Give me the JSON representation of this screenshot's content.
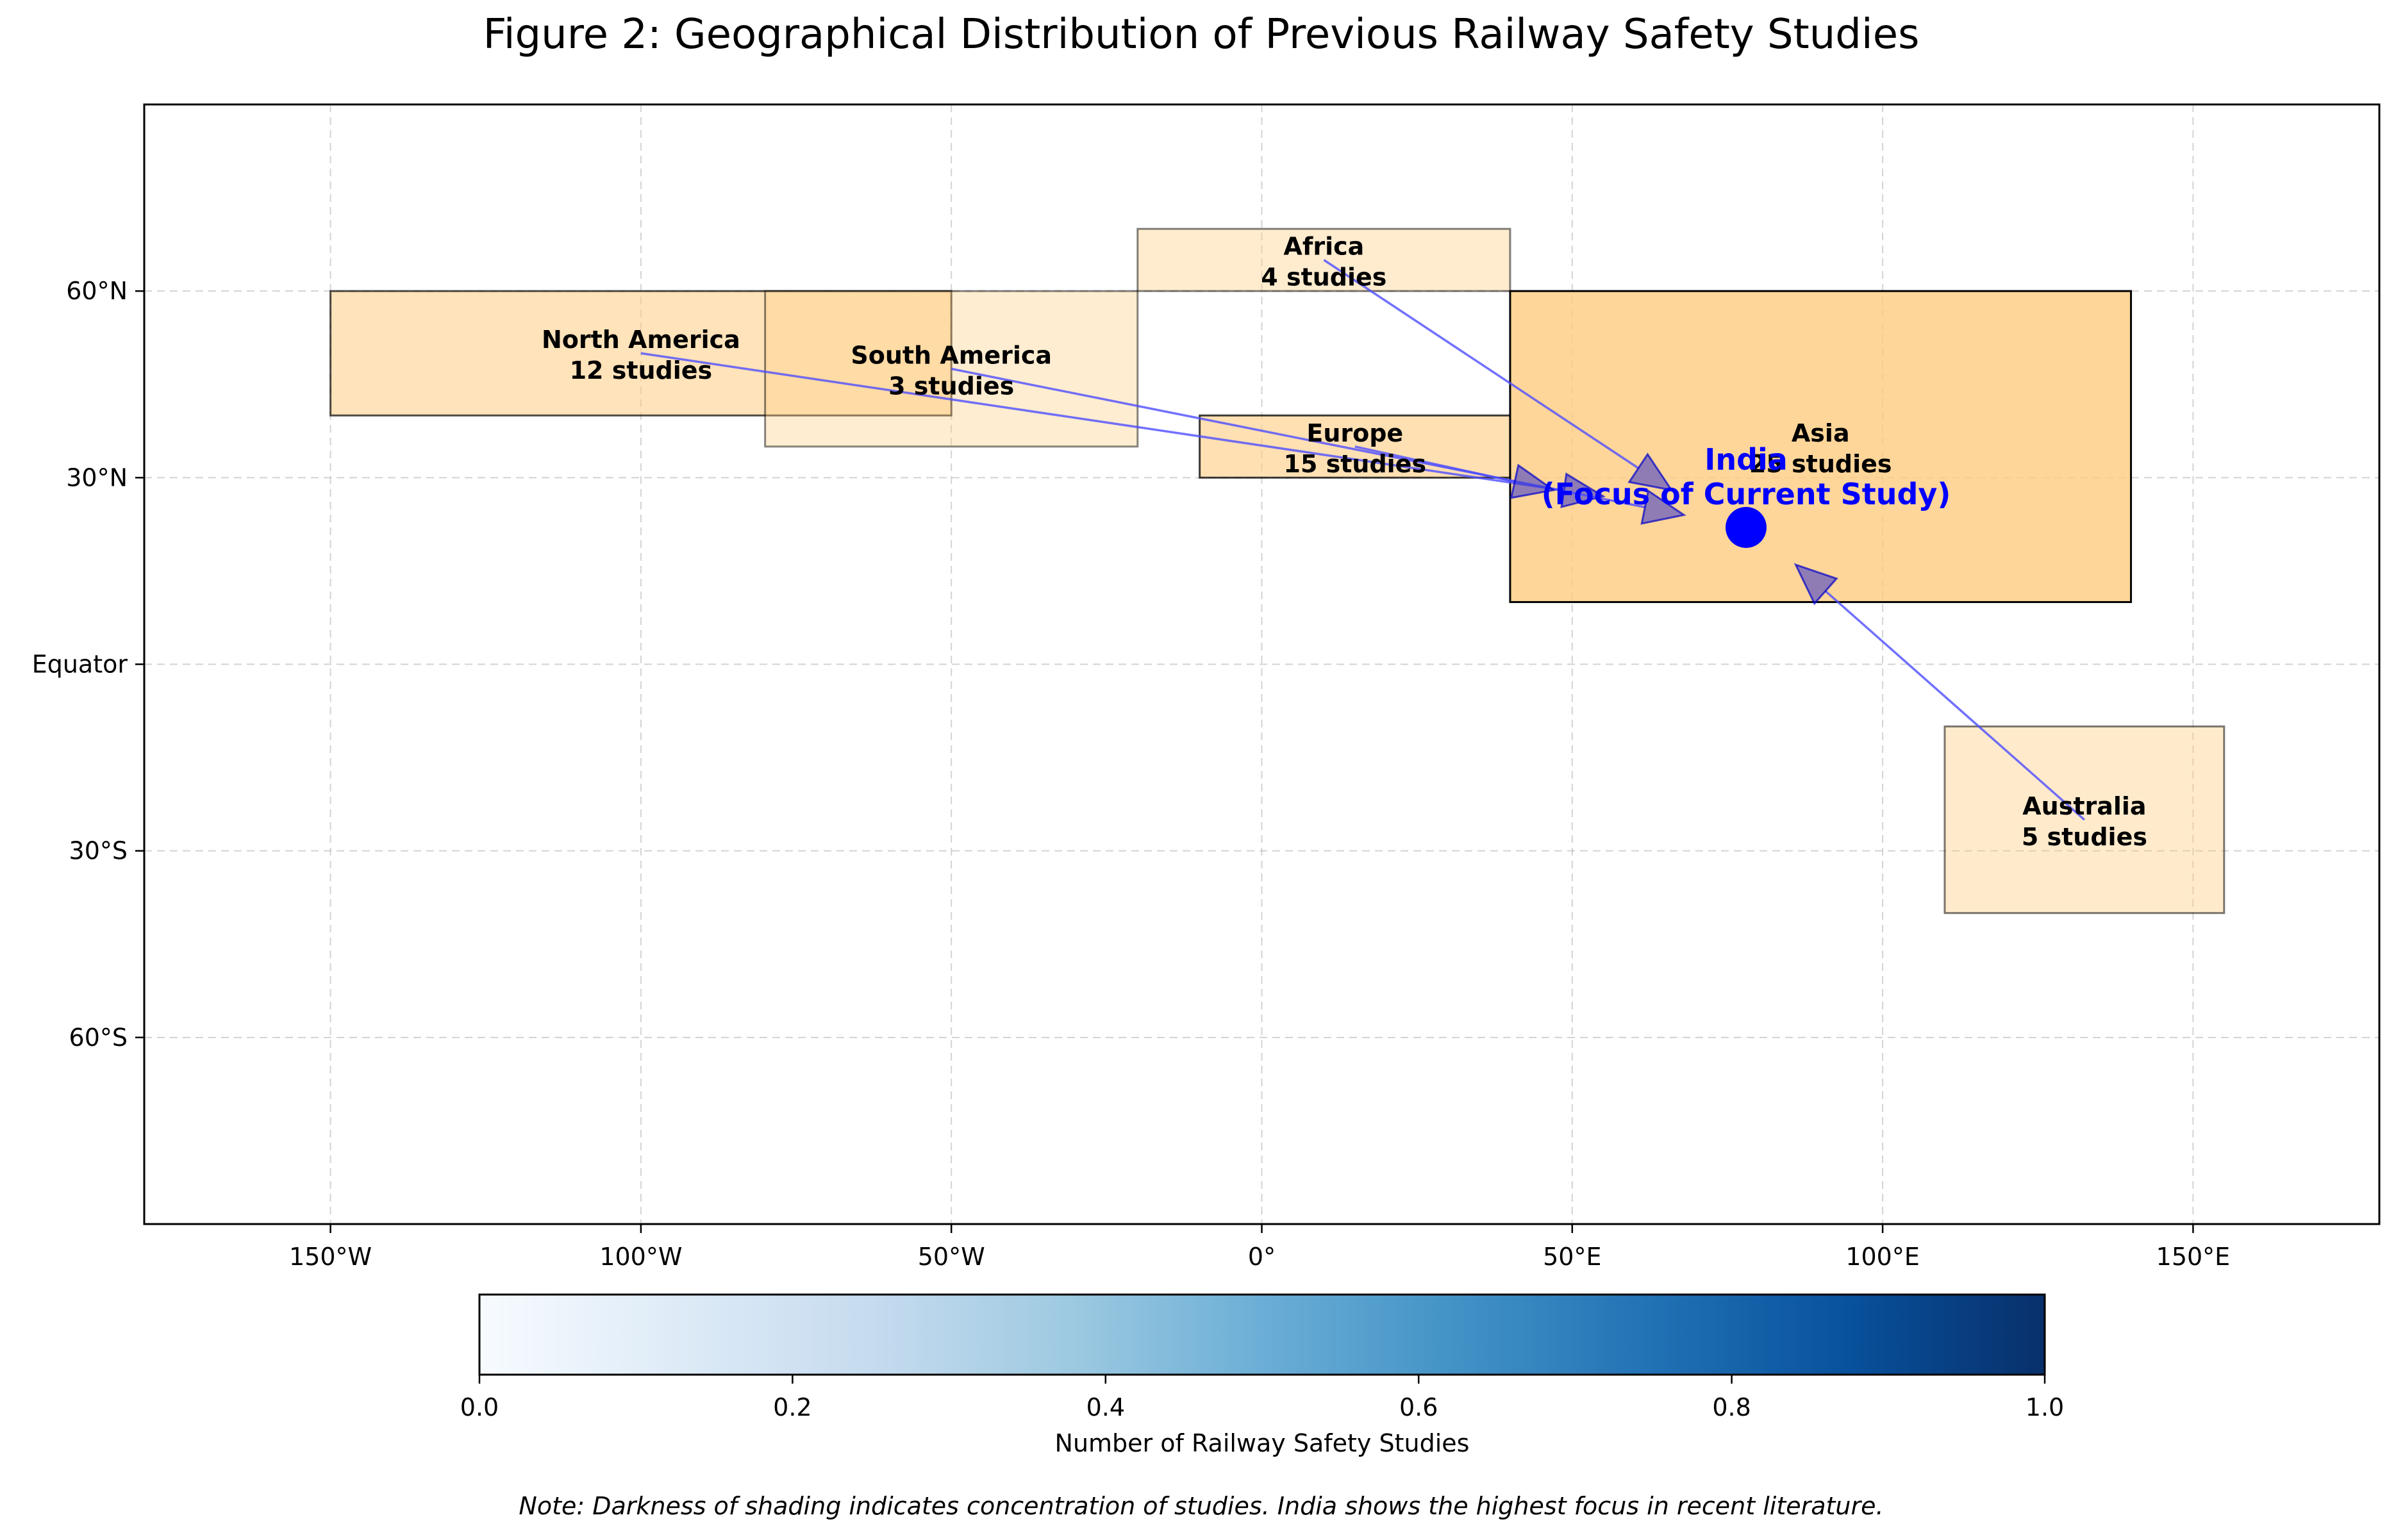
{
  "chart_data": {
    "type": "map",
    "title": "Figure 2: Geographical Distribution of Previous Railway Safety Studies",
    "xlim": [
      -180,
      180
    ],
    "ylim": [
      -90,
      90
    ],
    "grid": true,
    "x_ticks": [
      {
        "value": -150,
        "label": "150°W"
      },
      {
        "value": -100,
        "label": "100°W"
      },
      {
        "value": -50,
        "label": "50°W"
      },
      {
        "value": 0,
        "label": "0°"
      },
      {
        "value": 50,
        "label": "50°E"
      },
      {
        "value": 100,
        "label": "100°E"
      },
      {
        "value": 150,
        "label": "150°E"
      }
    ],
    "y_ticks": [
      {
        "value": 60,
        "label": "60°N"
      },
      {
        "value": 30,
        "label": "30°N"
      },
      {
        "value": 0,
        "label": "Equator"
      },
      {
        "value": -30,
        "label": "30°S"
      },
      {
        "value": -60,
        "label": "60°S"
      }
    ],
    "regions": [
      {
        "name": "North America",
        "studies": 12,
        "studies_label": "12 studies",
        "lon": [
          -150,
          -50
        ],
        "lat": [
          40,
          60
        ],
        "label_at": [
          -100,
          50
        ],
        "intensity": 0.48
      },
      {
        "name": "South America",
        "studies": 3,
        "studies_label": "3 studies",
        "lon": [
          -80,
          -20
        ],
        "lat": [
          35,
          60
        ],
        "label_at": [
          -50,
          47.5
        ],
        "intensity": 0.12
      },
      {
        "name": "Africa",
        "studies": 4,
        "studies_label": "4 studies",
        "lon": [
          -20,
          40
        ],
        "lat": [
          60,
          70
        ],
        "label_at": [
          10,
          65
        ],
        "intensity": 0.16
      },
      {
        "name": "Europe",
        "studies": 15,
        "studies_label": "15 studies",
        "lon": [
          -10,
          40
        ],
        "lat": [
          30,
          40
        ],
        "label_at": [
          15,
          35
        ],
        "intensity": 0.6
      },
      {
        "name": "Asia",
        "studies": 25,
        "studies_label": "25 studies",
        "lon": [
          40,
          140
        ],
        "lat": [
          10,
          60
        ],
        "label_at": [
          90,
          35
        ],
        "intensity": 1.0
      },
      {
        "name": "Australia",
        "studies": 5,
        "studies_label": "5 studies",
        "lon": [
          110,
          155
        ],
        "lat": [
          -40,
          -10
        ],
        "label_at": [
          132.5,
          -25
        ],
        "intensity": 0.2
      }
    ],
    "focus": {
      "line1": "India",
      "line2": "(Focus of Current Study)",
      "lon": 78,
      "lat": 22,
      "color": "#0000ff"
    },
    "arrows": [
      {
        "from": "North America",
        "to": [
          55,
          27
        ]
      },
      {
        "from": "South America",
        "to": [
          68,
          24
        ]
      },
      {
        "from": "Africa",
        "to": [
          66,
          28
        ]
      },
      {
        "from": "Europe",
        "to": [
          47,
          28
        ]
      },
      {
        "from": "Australia",
        "to": [
          86,
          16
        ]
      }
    ],
    "region_fill": "#ffcc80",
    "arrow_color": "#4d4dff",
    "colorbar": {
      "label": "Number of Railway Safety Studies",
      "range": [
        0,
        1
      ],
      "ticks": [
        "0.0",
        "0.2",
        "0.4",
        "0.6",
        "0.8",
        "1.0"
      ],
      "colormap": [
        "#f7fbff",
        "#deebf7",
        "#c6dbef",
        "#9ecae1",
        "#6baed6",
        "#4292c6",
        "#2171b5",
        "#08519c",
        "#08306b"
      ]
    },
    "note": "Note: Darkness of shading indicates concentration of studies. India shows the highest focus in recent literature."
  }
}
